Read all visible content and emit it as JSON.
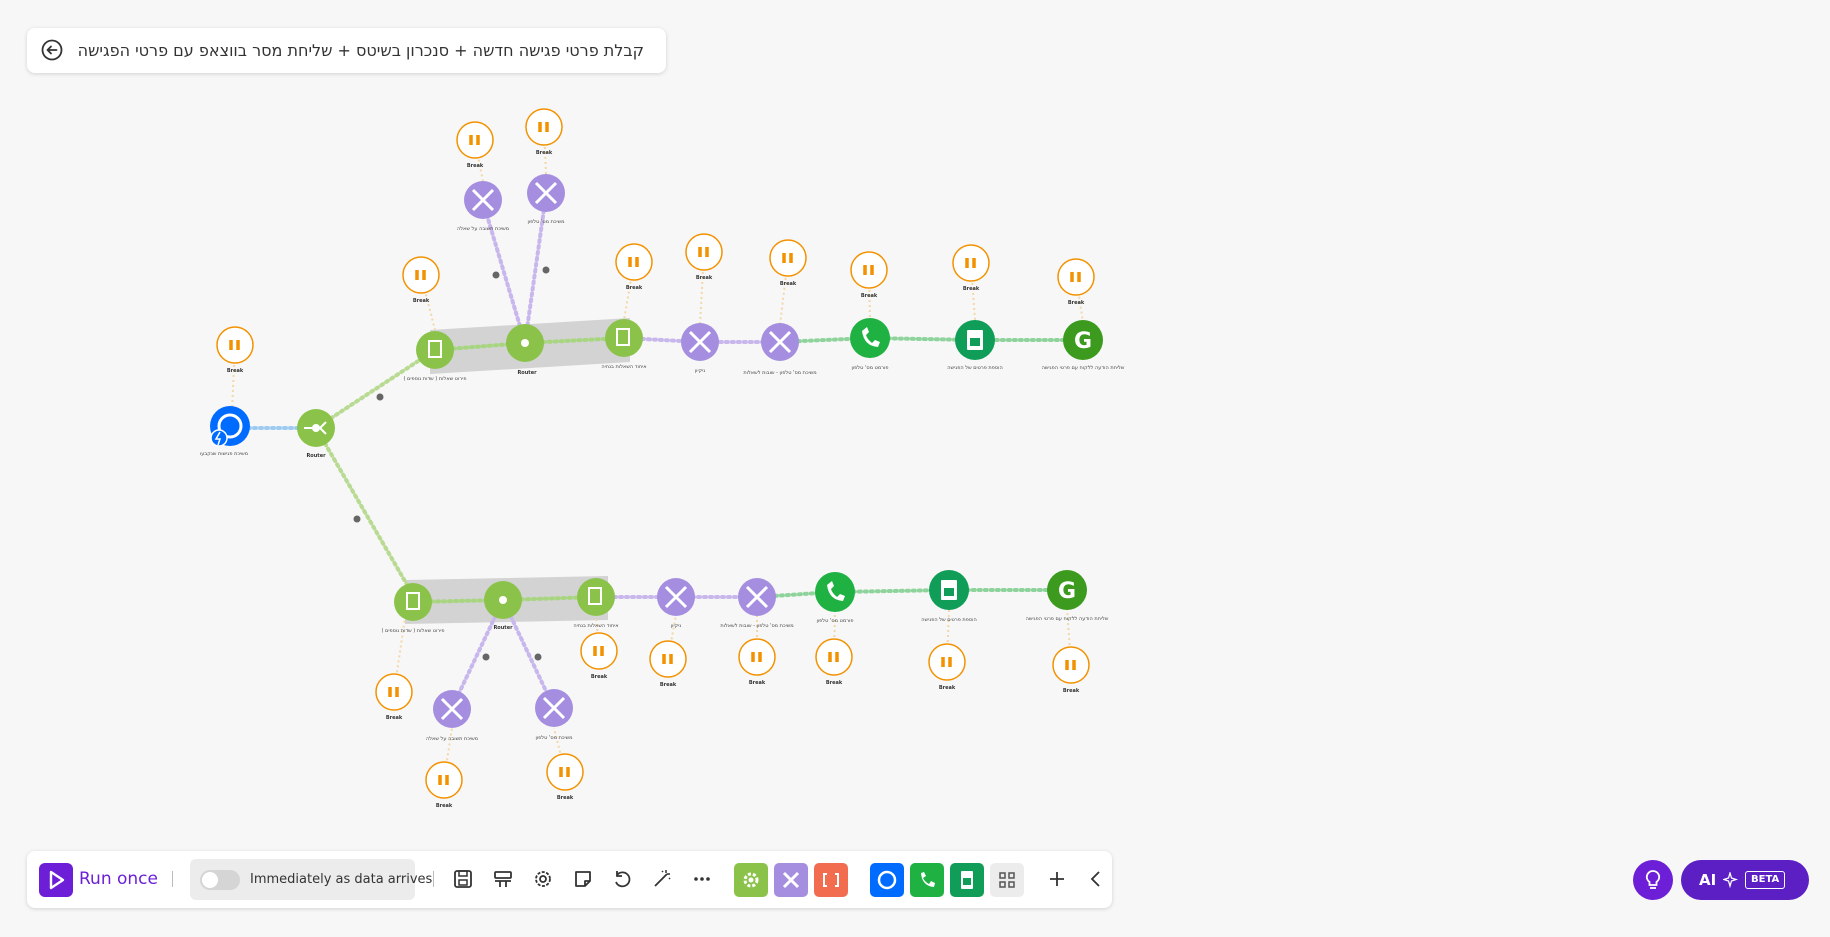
{
  "scenario": {
    "title": "קבלת פרטי פגישה חדשה + סנכרון בשיטס + שליחת מסר בווצאפ עם פרטי הפגישה"
  },
  "canvas": {
    "break_label": "Break",
    "router_label": "Router",
    "upper_row_labels": [
      "פירוט שאלות ( שדות נוספים )",
      "איחוד השאלות בנחיה",
      "ניקיון",
      "משיכת מס' טלפון - שובות לשאלות",
      "פורמט מס' טלפון",
      "הוספת פרטים של הפגישה",
      "שליחת הודעה ללקוח עם פרטי הפגישה"
    ],
    "lower_row_labels": [
      "פירוט שאלות ( שדות נוספים )",
      "איחוד השאלות בנחיה",
      "ניקיון",
      "משיכת מס' טלפון - שובות לשאלות",
      "פורמט מס' טלפון",
      "הוספת פרטים של הפגישה",
      "שליחת הודעה ללקוח עם פרטי הפגישה"
    ],
    "branch_labels": {
      "answer_to_question": "משיכת תשובה על שאלה",
      "phone_number": "משיכת מס' טלפון",
      "trigger": "משיכת פגישות שנקבעו"
    }
  },
  "toolbar": {
    "run_label": "Run once",
    "schedule_label": "Immediately as data arrives",
    "icons": [
      "save-icon",
      "scenario-io-icon",
      "settings-icon",
      "notes-icon",
      "undo-icon",
      "magic-wand-icon",
      "more-icon"
    ],
    "module_buttons": [
      "flow-control",
      "tools",
      "text-parser",
      "calendly",
      "whatsapp",
      "google-sheets",
      "apps"
    ]
  },
  "ai": {
    "label": "AI",
    "beta": "BETA"
  },
  "colors": {
    "accent": "#6c1fd6",
    "break_orange": "#f39200",
    "flow_green": "#8bc34a",
    "tools_purple": "#a58ee0",
    "calendly_blue": "#006bff",
    "whatsapp_green": "#1fb141",
    "sheets_green": "#0f9d58"
  }
}
